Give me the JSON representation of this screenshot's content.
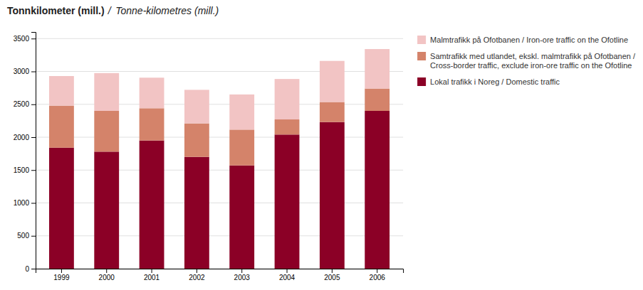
{
  "chart_data": {
    "type": "bar",
    "title": "Tonnkilometer (mill.)",
    "subtitle": "/  Tonne-kilometres (mill.)",
    "categories": [
      "1999",
      "2000",
      "2001",
      "2002",
      "2003",
      "2004",
      "2005",
      "2006"
    ],
    "series": [
      {
        "name": "Lokal trafikk i Noreg / Domestic traffic",
        "color": "#8B0026",
        "values": [
          1840,
          1780,
          1950,
          1700,
          1570,
          2040,
          2230,
          2400
        ]
      },
      {
        "name": "Samtrafikk med utlandet, ekskl. malmtrafikk på Ofotbanen /\nCross-border traffic, exclude iron-ore traffic on the Ofotline",
        "color": "#D4836A",
        "values": [
          640,
          620,
          490,
          510,
          545,
          230,
          305,
          340
        ]
      },
      {
        "name": "Malmtrafikk på Ofotbanen / Iron-ore traffic on the Ofotline",
        "color": "#F2C4C4",
        "values": [
          450,
          575,
          465,
          510,
          535,
          615,
          625,
          600
        ]
      }
    ],
    "stacked": true,
    "ylim": [
      0,
      3600
    ],
    "yticks": [
      0,
      500,
      1000,
      1500,
      2000,
      2500,
      3000,
      3500
    ],
    "grid": true,
    "legend": "right"
  }
}
